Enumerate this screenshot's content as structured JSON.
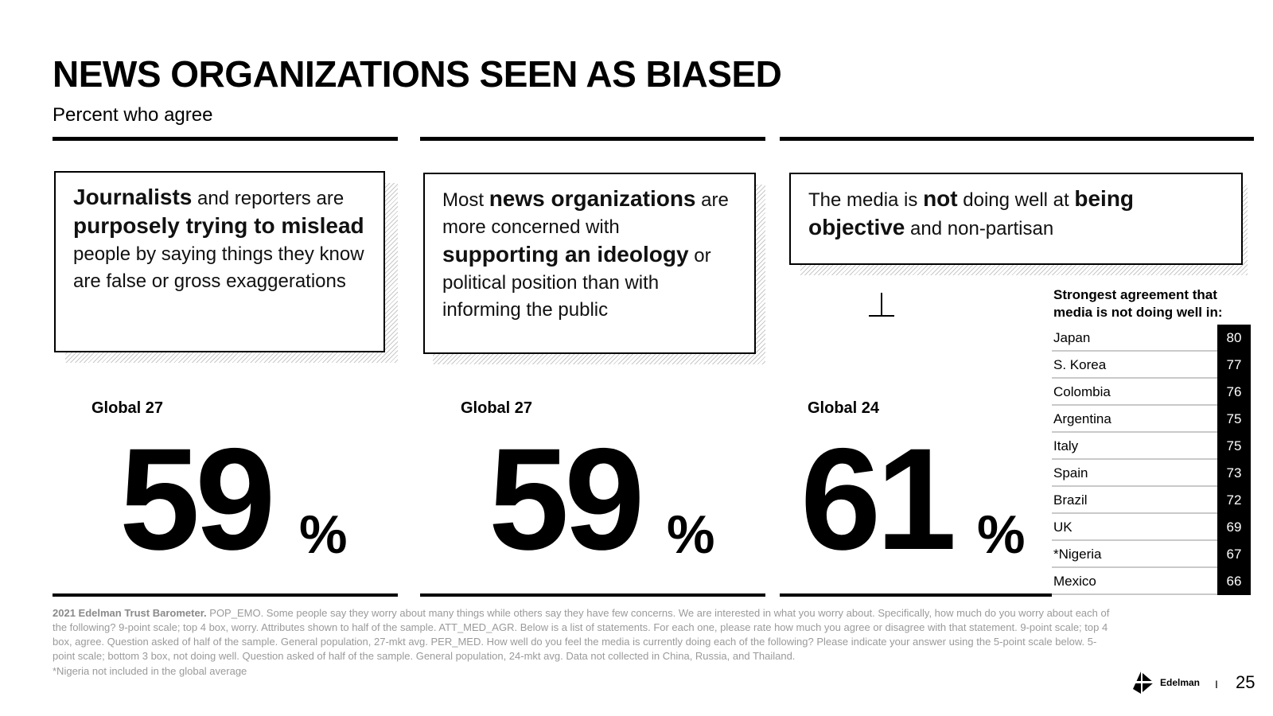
{
  "header": {
    "title": "NEWS ORGANIZATIONS SEEN AS BIASED",
    "subtitle": "Percent who agree"
  },
  "panels": [
    {
      "segments": [
        {
          "text": "Journalists",
          "bold": true
        },
        {
          "text": " and reporters are ",
          "bold": false
        },
        {
          "text": "purposely trying to mislead",
          "bold": true
        },
        {
          "text": " people by saying things they know are false or gross exaggerations",
          "bold": false
        }
      ],
      "global_label": "Global 27",
      "value": "59",
      "unit": "%"
    },
    {
      "segments": [
        {
          "text": "Most ",
          "bold": false
        },
        {
          "text": "news organizations",
          "bold": true
        },
        {
          "text": " are more concerned with ",
          "bold": false
        },
        {
          "text": "supporting an ideology",
          "bold": true
        },
        {
          "text": " or political position than with informing the public",
          "bold": false
        }
      ],
      "global_label": "Global 27",
      "value": "59",
      "unit": "%"
    },
    {
      "segments": [
        {
          "text": "The media is ",
          "bold": false
        },
        {
          "text": "not",
          "bold": true
        },
        {
          "text": " doing well at ",
          "bold": false
        },
        {
          "text": "being objective",
          "bold": true
        },
        {
          "text": " and non-partisan",
          "bold": false
        }
      ],
      "global_label": "Global 24",
      "value": "61",
      "unit": "%"
    }
  ],
  "side_table": {
    "title": "Strongest agreement that media is not doing well in:",
    "rows": [
      {
        "country": "Japan",
        "value": "80"
      },
      {
        "country": "S. Korea",
        "value": "77"
      },
      {
        "country": "Colombia",
        "value": "76"
      },
      {
        "country": "Argentina",
        "value": "75"
      },
      {
        "country": "Italy",
        "value": "75"
      },
      {
        "country": "Spain",
        "value": "73"
      },
      {
        "country": "Brazil",
        "value": "72"
      },
      {
        "country": "UK",
        "value": "69"
      },
      {
        "country": "*Nigeria",
        "value": "67"
      },
      {
        "country": "Mexico",
        "value": "66"
      }
    ]
  },
  "footnote": {
    "source_bold": "2021 Edelman Trust Barometer.",
    "text": " POP_EMO. Some people say they worry about many things while others say they have few concerns. We are interested in what you worry about. Specifically, how much do you worry about each of the following? 9-point scale; top 4 box, worry. Attributes shown to half of the sample. ATT_MED_AGR. Below is a list of statements. For each one, please rate how much you agree or disagree with that statement. 9-point scale; top 4 box, agree. Question asked of half of the sample. General population, 27-mkt avg. PER_MED. How well do you feel the media is currently doing each of the following? Please indicate your answer using the 5-point scale below. 5-point scale; bottom 3 box, not doing well. Question asked of half of the sample. General population, 24-mkt avg. Data not collected in China, Russia, and Thailand.",
    "note": "*Nigeria not included in the global average"
  },
  "footer": {
    "brand": "Edelman",
    "separator": "I",
    "page_number": "25"
  },
  "colors": {
    "text": "#000000",
    "footnote": "#9a9a9a",
    "shadow_hatch": "#c8c8c8",
    "table_divider": "#c9c9c9"
  }
}
